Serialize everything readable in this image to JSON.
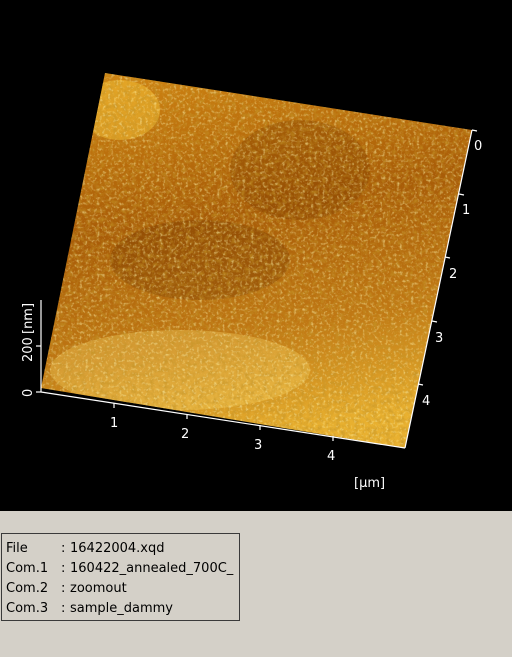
{
  "viewer": {
    "x_ticks": [
      "1",
      "2",
      "3",
      "4"
    ],
    "y_ticks": [
      "0",
      "1",
      "2",
      "3",
      "4"
    ],
    "z_ticks": [
      "0",
      "200"
    ],
    "z_unit": "[nm]",
    "xy_unit": "[µm]",
    "colormap": [
      "#5a2a00",
      "#8b4a00",
      "#c07a10",
      "#e8a820",
      "#ffd24a",
      "#fff1a0"
    ]
  },
  "info": {
    "rows": [
      {
        "label": "File",
        "value": "16422004.xqd"
      },
      {
        "label": "Com.1",
        "value": "160422_annealed_700C_"
      },
      {
        "label": "Com.2",
        "value": "zoomout"
      },
      {
        "label": "Com.3",
        "value": "sample_dammy"
      }
    ]
  }
}
